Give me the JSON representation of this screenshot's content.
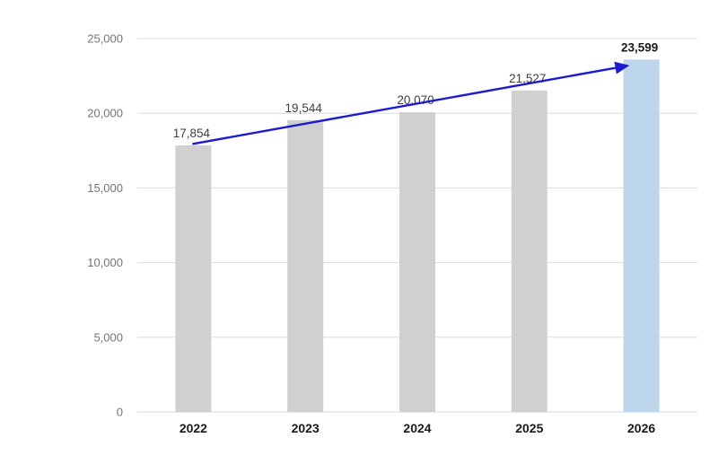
{
  "chart_data": {
    "type": "bar",
    "title": "",
    "xlabel": "",
    "ylabel": "",
    "categories": [
      "2022",
      "2023",
      "2024",
      "2025",
      "2026"
    ],
    "values": [
      17854,
      19544,
      20070,
      21527,
      23599
    ],
    "value_labels": [
      "17,854",
      "19,544",
      "20,070",
      "21,527",
      "23,599"
    ],
    "highlight_index": 4,
    "ylim": [
      0,
      25000
    ],
    "ytick_step": 5000,
    "yticks": [
      0,
      5000,
      10000,
      15000,
      20000,
      25000
    ],
    "ytick_labels": [
      "0",
      "5,000",
      "10,000",
      "15,000",
      "20,000",
      "25,000"
    ],
    "grid": true,
    "legend": "none",
    "annotation": {
      "kind": "trend-arrow",
      "from_category": "2022",
      "to_category": "2026",
      "description": "blue arrow from top of first bar to top of last bar"
    },
    "colors": {
      "background": "#ffffff",
      "bar_default": "#d1d0d0",
      "bar_highlight": "#bdd6ec",
      "gridline": "#dbdbdb",
      "axis_line": "#d7d7d7",
      "ytick_label": "#757575",
      "data_label": "#3f3f3f",
      "data_label_highlight": "#1a1a1a",
      "xtick_label": "#1a1a1a",
      "arrow": "#1b1bd0"
    }
  }
}
